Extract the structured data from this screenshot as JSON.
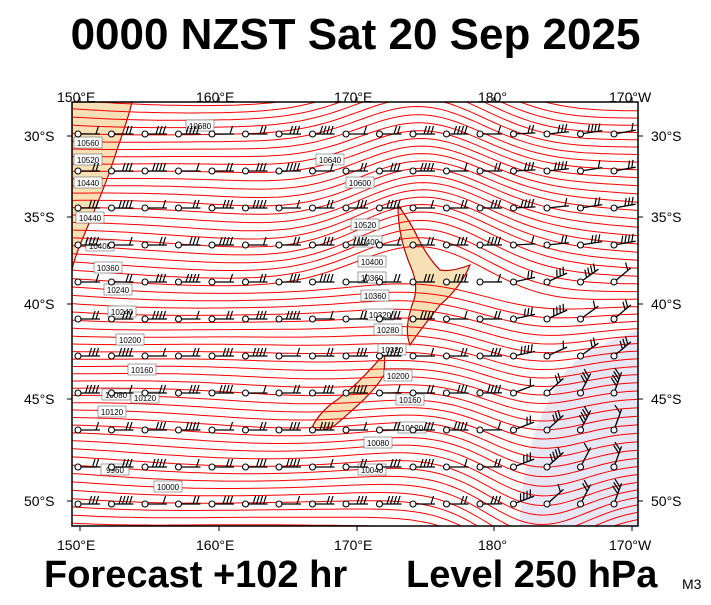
{
  "header": {
    "title": "0000 NZST Sat 20 Sep 2025"
  },
  "footer": {
    "forecast": "Forecast +102 hr",
    "level": "Level 250 hPa",
    "code": "M3"
  },
  "axes": {
    "longitude_labels": [
      "150°E",
      "160°E",
      "170°E",
      "180°",
      "170°W"
    ],
    "latitude_labels": [
      "30°S",
      "35°S",
      "40°S",
      "45°S",
      "50°S"
    ]
  },
  "contour_labels": [
    "10680",
    "10640",
    "10600",
    "10560",
    "10520",
    "10440",
    "10400",
    "10360",
    "10320",
    "10280",
    "10240",
    "10200",
    "10160",
    "10120",
    "10080",
    "10040",
    "10000",
    "9960"
  ],
  "colors": {
    "contour": "#ff0000",
    "land": "#f7e0b5",
    "coast": "#b80000",
    "low_shade": "#e6e6f5",
    "barb": "#000000"
  }
}
